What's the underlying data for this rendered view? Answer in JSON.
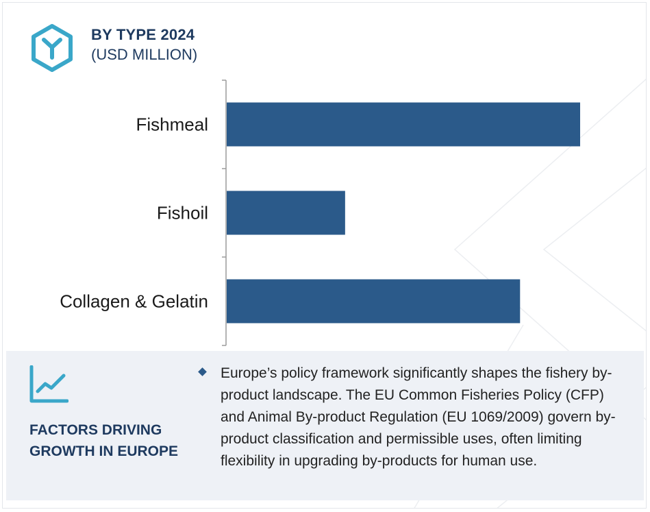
{
  "header": {
    "title": "BY TYPE 2024",
    "subtitle": "(USD MILLION)"
  },
  "chart_data": {
    "type": "bar",
    "orientation": "horizontal",
    "title": "BY TYPE 2024",
    "subtitle": "(USD MILLION)",
    "categories": [
      "Fishmeal",
      "Fishoil",
      "Collagen & Gelatin"
    ],
    "values": [
      100,
      33.5,
      83
    ],
    "xlim": [
      0,
      100
    ],
    "xlabel": "",
    "ylabel": "",
    "grid": false,
    "legend": "none",
    "bar_color": "#2b5a8a"
  },
  "factors": {
    "heading": "FACTORS DRIVING GROWTH IN EUROPE",
    "text": "Europe’s policy framework significantly shapes the fishery by-product landscape. The EU Common Fisheries Policy (CFP) and Animal By-product Regulation (EU 1069/2009) govern by-product classification and permissible uses, often limiting flexibility in upgrading by-products for human use."
  },
  "colors": {
    "accent": "#3aa7c9",
    "heading": "#1e3a5f",
    "panel": "#eef1f6"
  },
  "icons": {
    "logo": "hexagon-y-logo",
    "factors": "growth-chart-icon",
    "bullet": "diamond-bullet-icon"
  }
}
